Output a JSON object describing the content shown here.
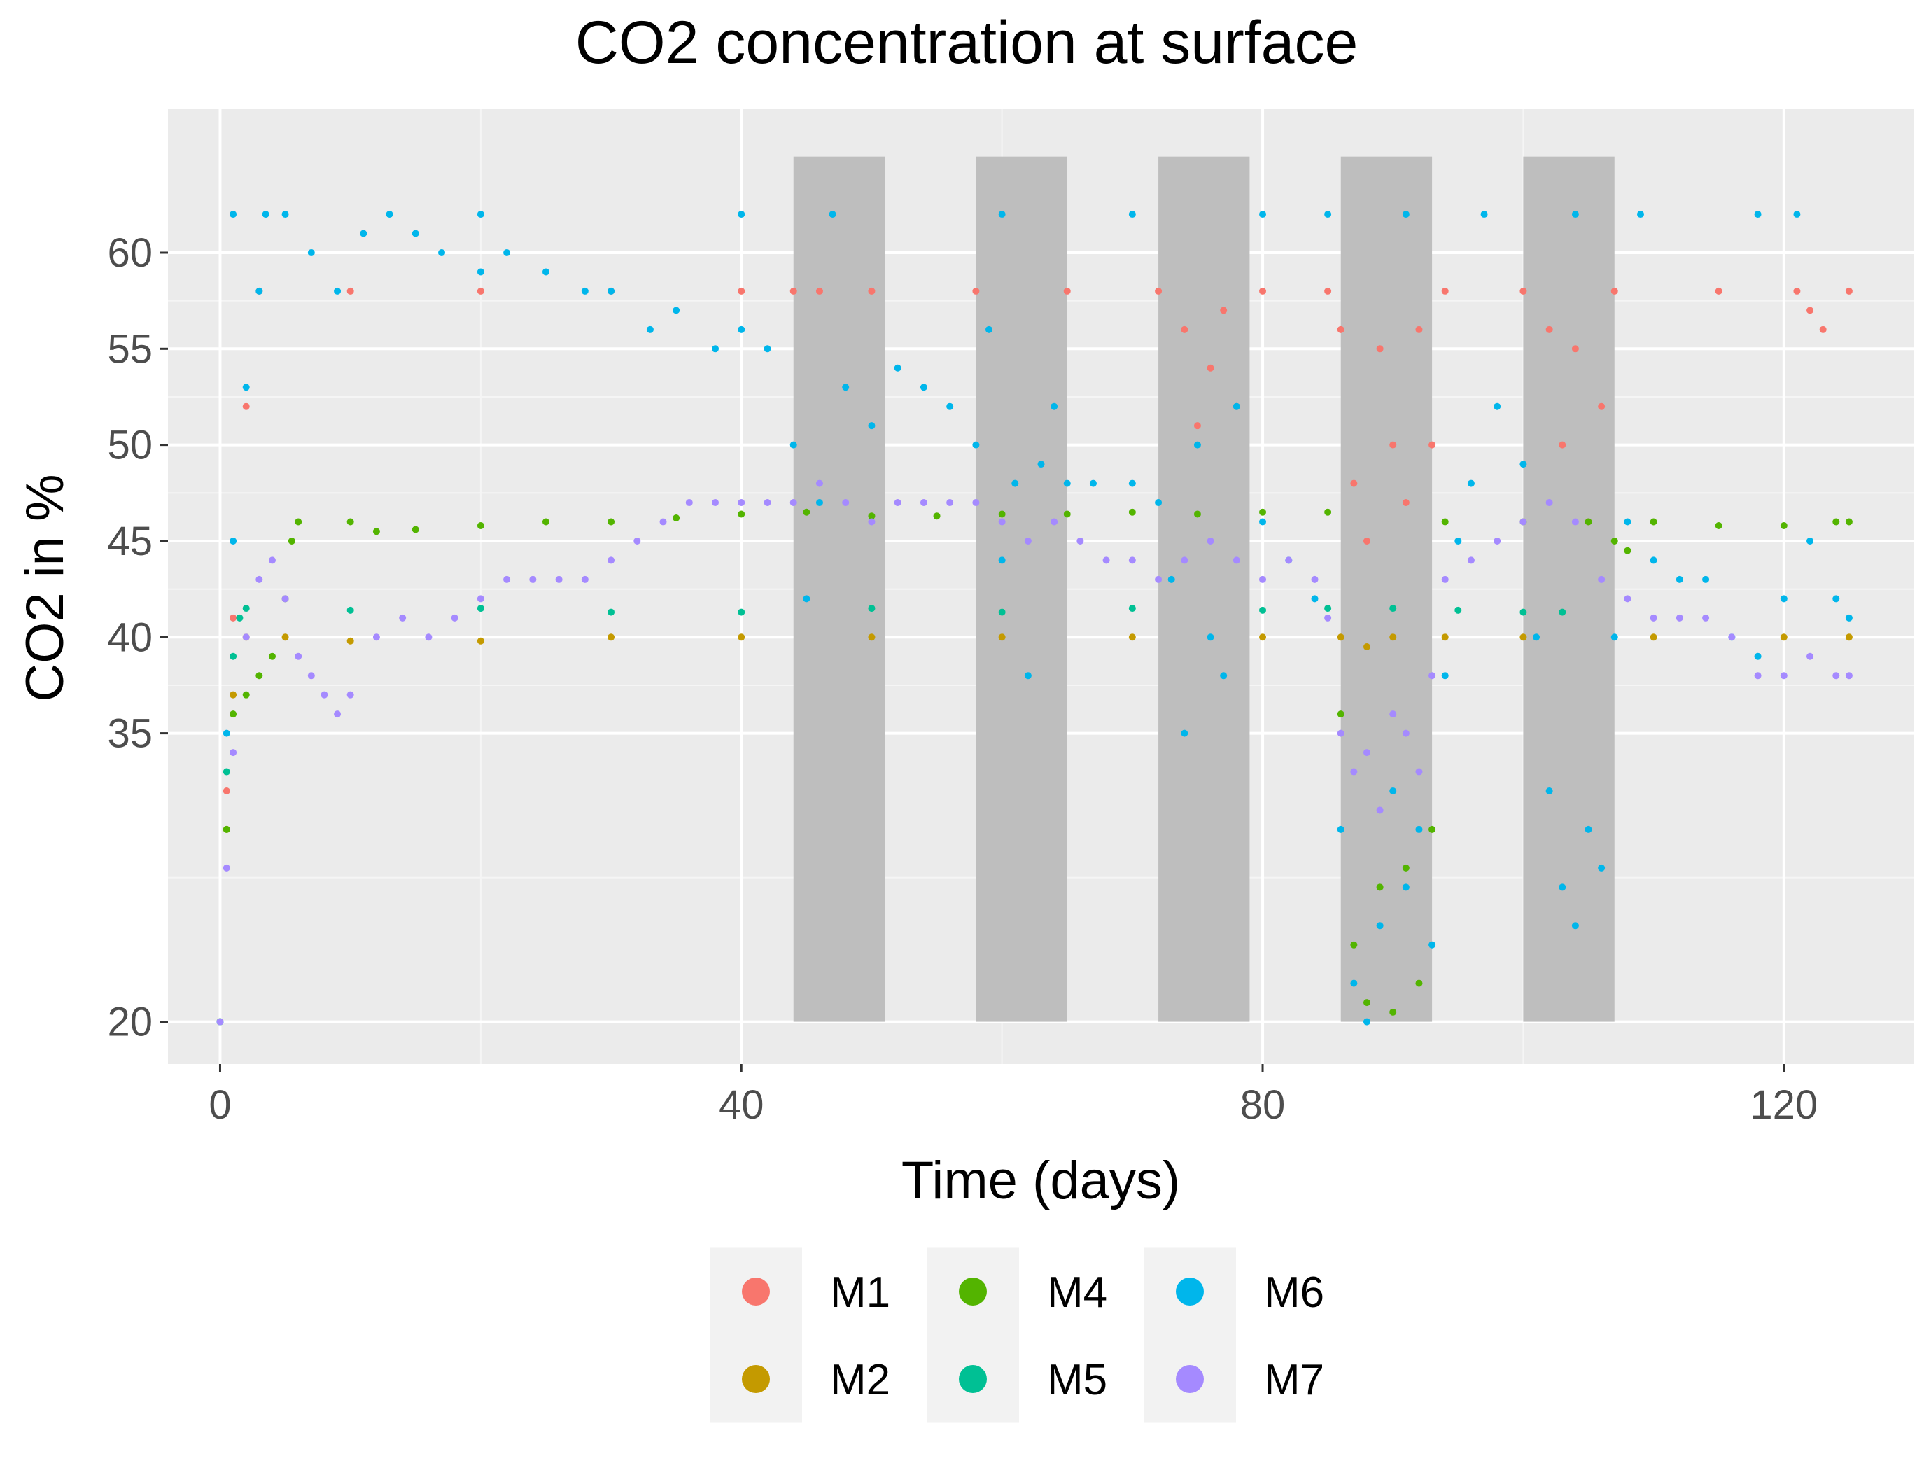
{
  "chart_data": {
    "type": "scatter",
    "title": "CO2 concentration at surface",
    "xlabel": "Time (days)",
    "ylabel": "CO2 in %",
    "xlim": [
      -4,
      130
    ],
    "ylim": [
      17.8,
      67.5
    ],
    "x_ticks": [
      {
        "value": 0,
        "label": "0"
      },
      {
        "value": 40,
        "label": "40"
      },
      {
        "value": 80,
        "label": "80"
      },
      {
        "value": 120,
        "label": "120"
      }
    ],
    "y_ticks": [
      {
        "value": 20,
        "label": "20"
      },
      {
        "value": 35,
        "label": "35"
      },
      {
        "value": 40,
        "label": "40"
      },
      {
        "value": 45,
        "label": "45"
      },
      {
        "value": 50,
        "label": "50"
      },
      {
        "value": 55,
        "label": "55"
      },
      {
        "value": 60,
        "label": "60"
      }
    ],
    "grid": true,
    "legend_position": "bottom",
    "shaded_periods": [
      {
        "start": 44,
        "end": 51,
        "ymin": 20,
        "ymax": 65
      },
      {
        "start": 58,
        "end": 65,
        "ymin": 20,
        "ymax": 65
      },
      {
        "start": 72,
        "end": 79,
        "ymin": 20,
        "ymax": 65
      },
      {
        "start": 86,
        "end": 93,
        "ymin": 20,
        "ymax": 65
      },
      {
        "start": 100,
        "end": 107,
        "ymin": 20,
        "ymax": 65
      }
    ],
    "series": [
      {
        "name": "M1",
        "color": "#F8766D",
        "points": [
          [
            0,
            20
          ],
          [
            0.5,
            32
          ],
          [
            1,
            41
          ],
          [
            2,
            52
          ],
          [
            3,
            58
          ],
          [
            10,
            58
          ],
          [
            20,
            58
          ],
          [
            30,
            58
          ],
          [
            40,
            58
          ],
          [
            44,
            58
          ],
          [
            46,
            58
          ],
          [
            50,
            58
          ],
          [
            58,
            58
          ],
          [
            65,
            58
          ],
          [
            72,
            58
          ],
          [
            74,
            56
          ],
          [
            75,
            51
          ],
          [
            76,
            54
          ],
          [
            77,
            57
          ],
          [
            78,
            52
          ],
          [
            80,
            58
          ],
          [
            85,
            58
          ],
          [
            86,
            56
          ],
          [
            87,
            48
          ],
          [
            88,
            45
          ],
          [
            89,
            55
          ],
          [
            90,
            50
          ],
          [
            91,
            47
          ],
          [
            92,
            56
          ],
          [
            93,
            50
          ],
          [
            94,
            58
          ],
          [
            100,
            58
          ],
          [
            102,
            56
          ],
          [
            103,
            50
          ],
          [
            104,
            55
          ],
          [
            105,
            46
          ],
          [
            106,
            52
          ],
          [
            107,
            58
          ],
          [
            115,
            58
          ],
          [
            121,
            58
          ],
          [
            122,
            57
          ],
          [
            123,
            56
          ],
          [
            125,
            58
          ]
        ]
      },
      {
        "name": "M2",
        "color": "#C49A00",
        "points": [
          [
            0,
            20
          ],
          [
            0.5,
            30
          ],
          [
            1,
            37
          ],
          [
            2,
            40
          ],
          [
            5,
            40
          ],
          [
            10,
            39.8
          ],
          [
            20,
            39.8
          ],
          [
            30,
            40
          ],
          [
            40,
            40
          ],
          [
            50,
            40
          ],
          [
            60,
            40
          ],
          [
            70,
            40
          ],
          [
            80,
            40
          ],
          [
            86,
            40
          ],
          [
            88,
            39.5
          ],
          [
            90,
            40
          ],
          [
            94,
            40
          ],
          [
            100,
            40
          ],
          [
            110,
            40
          ],
          [
            120,
            40
          ],
          [
            125,
            40
          ]
        ]
      },
      {
        "name": "M4",
        "color": "#53B400",
        "points": [
          [
            0,
            20
          ],
          [
            0.5,
            30
          ],
          [
            1,
            36
          ],
          [
            2,
            37
          ],
          [
            3,
            38
          ],
          [
            4,
            39
          ],
          [
            5,
            42
          ],
          [
            5.5,
            45
          ],
          [
            6,
            46
          ],
          [
            10,
            46
          ],
          [
            12,
            45.5
          ],
          [
            15,
            45.6
          ],
          [
            20,
            45.8
          ],
          [
            25,
            46
          ],
          [
            30,
            46
          ],
          [
            35,
            46.2
          ],
          [
            40,
            46.4
          ],
          [
            45,
            46.5
          ],
          [
            50,
            46.3
          ],
          [
            55,
            46.3
          ],
          [
            60,
            46.4
          ],
          [
            65,
            46.4
          ],
          [
            70,
            46.5
          ],
          [
            75,
            46.4
          ],
          [
            80,
            46.5
          ],
          [
            85,
            46.5
          ],
          [
            86,
            36
          ],
          [
            87,
            24
          ],
          [
            88,
            21
          ],
          [
            89,
            27
          ],
          [
            90,
            20.5
          ],
          [
            91,
            28
          ],
          [
            92,
            22
          ],
          [
            93,
            30
          ],
          [
            94,
            46
          ],
          [
            100,
            46
          ],
          [
            105,
            46
          ],
          [
            107,
            45
          ],
          [
            108,
            44.5
          ],
          [
            110,
            46
          ],
          [
            115,
            45.8
          ],
          [
            120,
            45.8
          ],
          [
            124,
            46
          ],
          [
            125,
            46
          ]
        ]
      },
      {
        "name": "M5",
        "color": "#00C094",
        "points": [
          [
            0,
            20
          ],
          [
            0.5,
            33
          ],
          [
            1,
            39
          ],
          [
            1.5,
            41
          ],
          [
            2,
            41.5
          ],
          [
            10,
            41.4
          ],
          [
            20,
            41.5
          ],
          [
            30,
            41.3
          ],
          [
            40,
            41.3
          ],
          [
            50,
            41.5
          ],
          [
            60,
            41.3
          ],
          [
            70,
            41.5
          ],
          [
            80,
            41.4
          ],
          [
            85,
            41.5
          ],
          [
            90,
            41.5
          ],
          [
            95,
            41.4
          ],
          [
            100,
            41.3
          ],
          [
            103,
            41.3
          ]
        ]
      },
      {
        "name": "M6",
        "color": "#00B6EB",
        "points": [
          [
            0,
            20
          ],
          [
            0.5,
            35
          ],
          [
            1,
            45
          ],
          [
            2,
            53
          ],
          [
            3,
            58
          ],
          [
            3.5,
            62
          ],
          [
            5,
            62
          ],
          [
            7,
            60
          ],
          [
            9,
            58
          ],
          [
            11,
            61
          ],
          [
            13,
            62
          ],
          [
            15,
            61
          ],
          [
            17,
            60
          ],
          [
            20,
            59
          ],
          [
            22,
            60
          ],
          [
            25,
            59
          ],
          [
            28,
            58
          ],
          [
            30,
            58
          ],
          [
            33,
            56
          ],
          [
            35,
            57
          ],
          [
            38,
            55
          ],
          [
            40,
            56
          ],
          [
            42,
            55
          ],
          [
            44,
            50
          ],
          [
            45,
            42
          ],
          [
            46,
            47
          ],
          [
            48,
            53
          ],
          [
            50,
            51
          ],
          [
            52,
            54
          ],
          [
            54,
            53
          ],
          [
            56,
            52
          ],
          [
            58,
            50
          ],
          [
            59,
            56
          ],
          [
            60,
            44
          ],
          [
            61,
            48
          ],
          [
            62,
            38
          ],
          [
            63,
            49
          ],
          [
            64,
            52
          ],
          [
            65,
            48
          ],
          [
            67,
            48
          ],
          [
            70,
            48
          ],
          [
            72,
            47
          ],
          [
            73,
            43
          ],
          [
            74,
            35
          ],
          [
            75,
            50
          ],
          [
            76,
            40
          ],
          [
            77,
            38
          ],
          [
            78,
            52
          ],
          [
            80,
            46
          ],
          [
            82,
            44
          ],
          [
            84,
            42
          ],
          [
            86,
            30
          ],
          [
            87,
            22
          ],
          [
            88,
            20
          ],
          [
            89,
            25
          ],
          [
            90,
            32
          ],
          [
            91,
            27
          ],
          [
            92,
            30
          ],
          [
            93,
            24
          ],
          [
            94,
            38
          ],
          [
            95,
            45
          ],
          [
            96,
            48
          ],
          [
            98,
            52
          ],
          [
            100,
            49
          ],
          [
            101,
            40
          ],
          [
            102,
            32
          ],
          [
            103,
            27
          ],
          [
            104,
            25
          ],
          [
            105,
            30
          ],
          [
            106,
            28
          ],
          [
            107,
            40
          ],
          [
            108,
            46
          ],
          [
            110,
            44
          ],
          [
            112,
            43
          ],
          [
            114,
            43
          ],
          [
            116,
            40
          ],
          [
            118,
            39
          ],
          [
            120,
            42
          ],
          [
            122,
            45
          ],
          [
            124,
            42
          ],
          [
            125,
            41
          ],
          [
            1,
            62
          ],
          [
            20,
            62
          ],
          [
            40,
            62
          ],
          [
            47,
            62
          ],
          [
            60,
            62
          ],
          [
            70,
            62
          ],
          [
            80,
            62
          ],
          [
            85,
            62
          ],
          [
            91,
            62
          ],
          [
            97,
            62
          ],
          [
            104,
            62
          ],
          [
            109,
            62
          ],
          [
            118,
            62
          ],
          [
            121,
            62
          ]
        ]
      },
      {
        "name": "M7",
        "color": "#A58AFF",
        "points": [
          [
            0,
            20
          ],
          [
            0.5,
            28
          ],
          [
            1,
            34
          ],
          [
            2,
            40
          ],
          [
            3,
            43
          ],
          [
            4,
            44
          ],
          [
            5,
            42
          ],
          [
            6,
            39
          ],
          [
            7,
            38
          ],
          [
            8,
            37
          ],
          [
            9,
            36
          ],
          [
            10,
            37
          ],
          [
            12,
            40
          ],
          [
            14,
            41
          ],
          [
            16,
            40
          ],
          [
            18,
            41
          ],
          [
            20,
            42
          ],
          [
            22,
            43
          ],
          [
            24,
            43
          ],
          [
            26,
            43
          ],
          [
            28,
            43
          ],
          [
            30,
            44
          ],
          [
            32,
            45
          ],
          [
            34,
            46
          ],
          [
            36,
            47
          ],
          [
            38,
            47
          ],
          [
            40,
            47
          ],
          [
            42,
            47
          ],
          [
            44,
            47
          ],
          [
            46,
            48
          ],
          [
            48,
            47
          ],
          [
            50,
            46
          ],
          [
            52,
            47
          ],
          [
            54,
            47
          ],
          [
            56,
            47
          ],
          [
            58,
            47
          ],
          [
            60,
            46
          ],
          [
            62,
            45
          ],
          [
            64,
            46
          ],
          [
            66,
            45
          ],
          [
            68,
            44
          ],
          [
            70,
            44
          ],
          [
            72,
            43
          ],
          [
            74,
            44
          ],
          [
            76,
            45
          ],
          [
            78,
            44
          ],
          [
            80,
            43
          ],
          [
            82,
            44
          ],
          [
            84,
            43
          ],
          [
            85,
            41
          ],
          [
            86,
            35
          ],
          [
            87,
            33
          ],
          [
            88,
            34
          ],
          [
            89,
            31
          ],
          [
            90,
            36
          ],
          [
            91,
            35
          ],
          [
            92,
            33
          ],
          [
            93,
            38
          ],
          [
            94,
            43
          ],
          [
            96,
            44
          ],
          [
            98,
            45
          ],
          [
            100,
            46
          ],
          [
            102,
            47
          ],
          [
            104,
            46
          ],
          [
            106,
            43
          ],
          [
            108,
            42
          ],
          [
            110,
            41
          ],
          [
            112,
            41
          ],
          [
            114,
            41
          ],
          [
            116,
            40
          ],
          [
            118,
            38
          ],
          [
            120,
            38
          ],
          [
            122,
            39
          ],
          [
            124,
            38
          ],
          [
            125,
            38
          ]
        ]
      }
    ]
  },
  "legend": [
    {
      "label": "M1",
      "color": "#F8766D"
    },
    {
      "label": "M2",
      "color": "#C49A00"
    },
    {
      "label": "M4",
      "color": "#53B400"
    },
    {
      "label": "M5",
      "color": "#00C094"
    },
    {
      "label": "M6",
      "color": "#00B6EB"
    },
    {
      "label": "M7",
      "color": "#A58AFF"
    }
  ]
}
